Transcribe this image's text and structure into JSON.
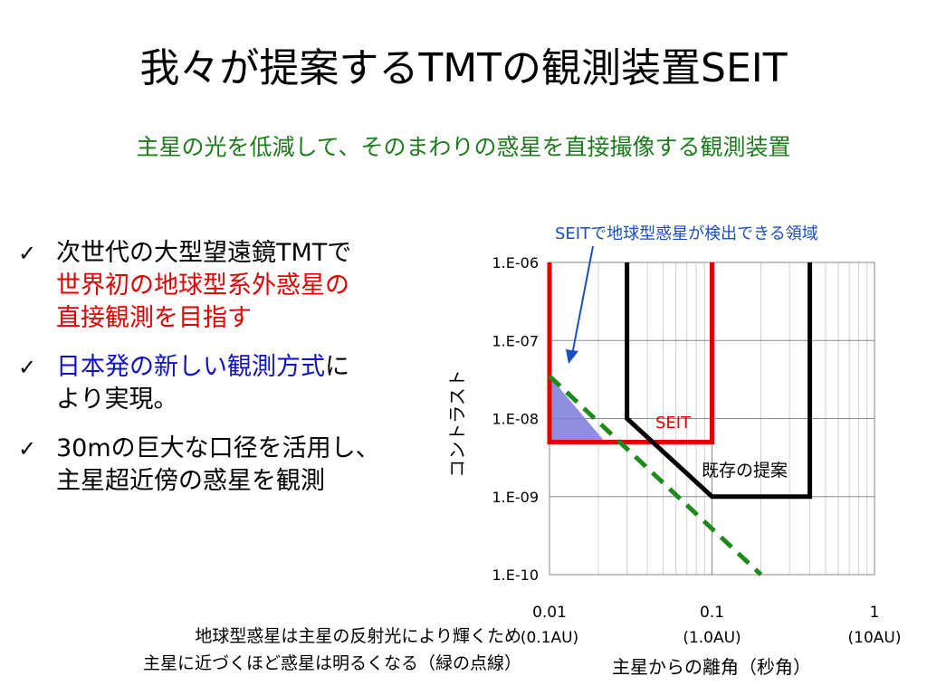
{
  "slide": {
    "title": "我々が提案するTMTの観測装置SEIT",
    "subtitle": "主星の光を低減して、そのまわりの惑星を直接撮像する観測装置",
    "bullets": [
      {
        "check": "✓",
        "line1": "次世代の大型望遠鏡TMTで",
        "line2": "世界初の地球型系外惑星の",
        "line3": "直接観測を目指す"
      },
      {
        "check": "✓",
        "blue": "日本発の新しい観測方式",
        "rest": "に",
        "line2": "より実現。"
      },
      {
        "check": "✓",
        "line1": "30mの巨大な口径を活用し、",
        "line2": "主星超近傍の惑星を観測"
      }
    ],
    "footnote": {
      "line1": "地球型惑星は主星の反射光により輝くため",
      "line2": "主星に近づくほど惑星は明るくなる（緑の点線）"
    }
  },
  "chart_data": {
    "type": "line",
    "xlabel": "主星からの離角（秒角）",
    "ylabel": "コントラスト",
    "x_scale": "log",
    "y_scale": "log",
    "xlim": [
      0.01,
      1
    ],
    "ylim": [
      1e-10,
      1e-06
    ],
    "x_ticks": [
      {
        "value": 0.01,
        "label": "0.01",
        "sublabel": "(0.1AU)"
      },
      {
        "value": 0.1,
        "label": "0.1",
        "sublabel": "(1.0AU)"
      },
      {
        "value": 1,
        "label": "1",
        "sublabel": "(10AU)"
      }
    ],
    "y_ticks": [
      {
        "value": 1e-06,
        "label": "1.E-06"
      },
      {
        "value": 1e-07,
        "label": "1.E-07"
      },
      {
        "value": 1e-08,
        "label": "1.E-08"
      },
      {
        "value": 1e-09,
        "label": "1.E-09"
      },
      {
        "value": 1e-10,
        "label": "1.E-10"
      }
    ],
    "grid": true,
    "series": [
      {
        "name": "SEIT",
        "color": "#e00000",
        "style": "solid",
        "x": [
          0.01,
          0.01,
          0.1,
          0.1
        ],
        "y": [
          1e-06,
          5e-09,
          5e-09,
          1e-06
        ]
      },
      {
        "name": "既存の提案",
        "color": "#000000",
        "style": "solid",
        "x": [
          0.03,
          0.03,
          0.1,
          0.4,
          0.4
        ],
        "y": [
          1e-06,
          1e-08,
          1e-09,
          1e-09,
          1e-06
        ]
      },
      {
        "name": "",
        "color": "#1e8a1e",
        "style": "dashed",
        "x": [
          0.01,
          0.2
        ],
        "y": [
          3.5e-08,
          1e-10
        ]
      }
    ],
    "shaded_region": {
      "color": "#7b7bdc",
      "x": [
        0.01,
        0.01,
        0.022
      ],
      "y": [
        3.5e-08,
        5e-09,
        5e-09
      ]
    },
    "annotations": [
      {
        "text": "SEITで地球型惑星が検出できる領域",
        "color": "#1a4fc4"
      },
      {
        "text": "SEIT",
        "color": "#e00000"
      },
      {
        "text": "既存の提案",
        "color": "#000000"
      }
    ]
  }
}
